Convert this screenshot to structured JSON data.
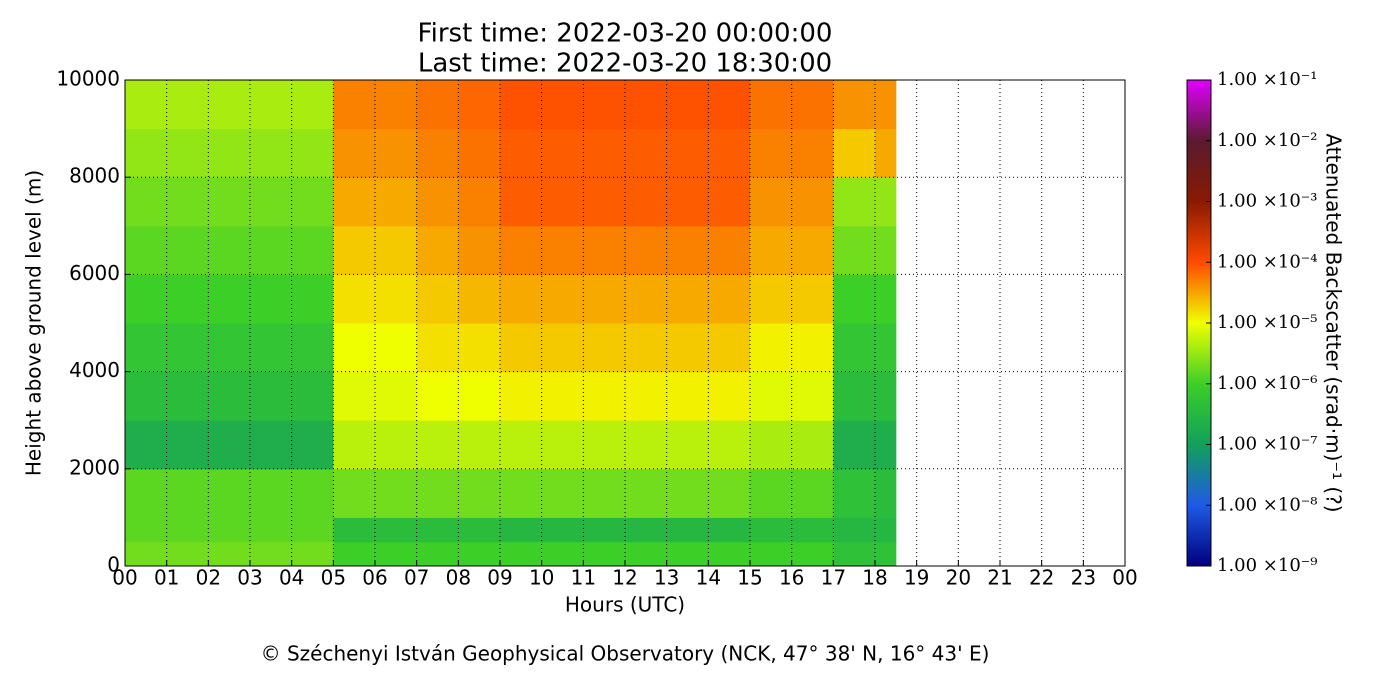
{
  "chart_data": {
    "type": "heatmap",
    "title": "First time: 2022-03-20 00:00:00",
    "subtitle": "Last time: 2022-03-20 18:30:00",
    "x_label": "Hours (UTC)",
    "y_label": "Height above ground level (m)",
    "colorbar_label": "Attenuated Backscatter (srad·m)⁻¹ (?)",
    "footer": "© Széchenyi István Geophysical Observatory (NCK, 47° 38' N, 16° 43' E)",
    "xlim": [
      0,
      24
    ],
    "xticks": [
      {
        "value": 0,
        "label": "00"
      },
      {
        "value": 1,
        "label": "01"
      },
      {
        "value": 2,
        "label": "02"
      },
      {
        "value": 3,
        "label": "03"
      },
      {
        "value": 4,
        "label": "04"
      },
      {
        "value": 5,
        "label": "05"
      },
      {
        "value": 6,
        "label": "06"
      },
      {
        "value": 7,
        "label": "07"
      },
      {
        "value": 8,
        "label": "08"
      },
      {
        "value": 9,
        "label": "09"
      },
      {
        "value": 10,
        "label": "10"
      },
      {
        "value": 11,
        "label": "11"
      },
      {
        "value": 12,
        "label": "12"
      },
      {
        "value": 13,
        "label": "13"
      },
      {
        "value": 14,
        "label": "14"
      },
      {
        "value": 15,
        "label": "15"
      },
      {
        "value": 16,
        "label": "16"
      },
      {
        "value": 17,
        "label": "17"
      },
      {
        "value": 18,
        "label": "18"
      },
      {
        "value": 19,
        "label": "19"
      },
      {
        "value": 20,
        "label": "20"
      },
      {
        "value": 21,
        "label": "21"
      },
      {
        "value": 22,
        "label": "22"
      },
      {
        "value": 23,
        "label": "23"
      },
      {
        "value": 24,
        "label": "00"
      }
    ],
    "ylim": [
      0,
      10000
    ],
    "yticks": [
      0,
      2000,
      4000,
      6000,
      8000,
      10000
    ],
    "grid": true,
    "xbins": [
      0,
      1,
      2,
      3,
      4,
      5,
      6,
      7,
      8,
      9,
      10,
      11,
      12,
      13,
      14,
      15,
      16,
      17,
      18,
      18.5
    ],
    "ybins": [
      0,
      500,
      1000,
      2000,
      3000,
      4000,
      5000,
      6000,
      7000,
      8000,
      9000,
      10000
    ],
    "values": [
      [
        2e-06,
        2e-06,
        2e-06,
        2e-06,
        2e-06,
        1e-06,
        1e-06,
        1e-06,
        1e-06,
        1e-06,
        1e-06,
        1e-06,
        1e-06,
        1e-06,
        1e-06,
        1e-06,
        1e-06,
        5e-07,
        5e-07
      ],
      [
        1.5e-06,
        1.5e-06,
        1.5e-06,
        1.5e-06,
        1.5e-06,
        4e-07,
        4e-07,
        4e-07,
        4e-07,
        3e-07,
        3e-07,
        3e-07,
        3e-07,
        3e-07,
        3e-07,
        4e-07,
        4e-07,
        3e-07,
        3e-07
      ],
      [
        1.5e-06,
        1.5e-06,
        1.5e-06,
        1.5e-06,
        1.5e-06,
        2e-06,
        2e-06,
        2e-06,
        2e-06,
        2e-06,
        2e-06,
        2e-06,
        2e-06,
        2e-06,
        2e-06,
        1.5e-06,
        1.5e-06,
        5e-07,
        4e-07
      ],
      [
        2e-07,
        2e-07,
        2e-07,
        2e-07,
        2e-07,
        5e-06,
        5e-06,
        5e-06,
        5e-06,
        5e-06,
        5e-06,
        5e-06,
        5e-06,
        5e-06,
        5e-06,
        4e-06,
        4e-06,
        2e-07,
        2e-07
      ],
      [
        4e-07,
        4e-07,
        4e-07,
        4e-07,
        4e-07,
        8e-06,
        8e-06,
        1e-05,
        1e-05,
        1.2e-05,
        1.2e-05,
        1.2e-05,
        1.2e-05,
        1.2e-05,
        1.2e-05,
        8e-06,
        8e-06,
        4e-07,
        4e-07
      ],
      [
        6e-07,
        6e-07,
        6e-07,
        6e-07,
        6e-07,
        1e-05,
        1e-05,
        1.5e-05,
        1.5e-05,
        2e-05,
        2e-05,
        2e-05,
        2e-05,
        2e-05,
        2e-05,
        1.2e-05,
        1.2e-05,
        6e-07,
        6e-07
      ],
      [
        1e-06,
        1e-06,
        1e-06,
        1e-06,
        1e-06,
        1.5e-05,
        1.5e-05,
        2e-05,
        2.5e-05,
        3e-05,
        3e-05,
        3e-05,
        3e-05,
        3e-05,
        3e-05,
        2e-05,
        2e-05,
        1e-06,
        1e-06
      ],
      [
        1.5e-06,
        1.5e-06,
        1.5e-06,
        1.5e-06,
        1.5e-06,
        2e-05,
        2e-05,
        3e-05,
        4e-05,
        5e-05,
        5e-05,
        5e-05,
        5e-05,
        5e-05,
        5e-05,
        3e-05,
        3e-05,
        2e-06,
        2e-06
      ],
      [
        2e-06,
        2e-06,
        2e-06,
        2e-06,
        2e-06,
        3e-05,
        3e-05,
        4e-05,
        5e-05,
        8e-05,
        8e-05,
        8e-05,
        8e-05,
        8e-05,
        8e-05,
        4e-05,
        4e-05,
        3e-06,
        3e-06
      ],
      [
        3e-06,
        3e-06,
        3e-06,
        3e-06,
        3e-06,
        4e-05,
        4e-05,
        5e-05,
        6e-05,
        8e-05,
        8e-05,
        8e-05,
        8e-05,
        8e-05,
        8e-05,
        5e-05,
        5e-05,
        2e-05,
        3e-05
      ],
      [
        4e-06,
        4e-06,
        4e-06,
        4e-06,
        4e-06,
        5e-05,
        5e-05,
        6e-05,
        7e-05,
        9e-05,
        9e-05,
        9e-05,
        9e-05,
        9e-05,
        9e-05,
        6e-05,
        6e-05,
        4e-05,
        4e-05
      ]
    ],
    "color_log": true,
    "clim": [
      1e-09,
      0.1
    ],
    "colormap": [
      "#00007f",
      "#1e5ae6",
      "#12a05a",
      "#3ccf28",
      "#f0ff00",
      "#ff4a00",
      "#8a1a00",
      "#5a1a30",
      "#e000ff"
    ],
    "cticks": [
      {
        "value": 1e-09,
        "label": "1.00 ×10⁻⁹"
      },
      {
        "value": 1e-08,
        "label": "1.00 ×10⁻⁸"
      },
      {
        "value": 1e-07,
        "label": "1.00 ×10⁻⁷"
      },
      {
        "value": 1e-06,
        "label": "1.00 ×10⁻⁶"
      },
      {
        "value": 1e-05,
        "label": "1.00 ×10⁻⁵"
      },
      {
        "value": 0.0001,
        "label": "1.00 ×10⁻⁴"
      },
      {
        "value": 0.001,
        "label": "1.00 ×10⁻³"
      },
      {
        "value": 0.01,
        "label": "1.00 ×10⁻²"
      },
      {
        "value": 0.1,
        "label": "1.00 ×10⁻¹"
      }
    ]
  }
}
